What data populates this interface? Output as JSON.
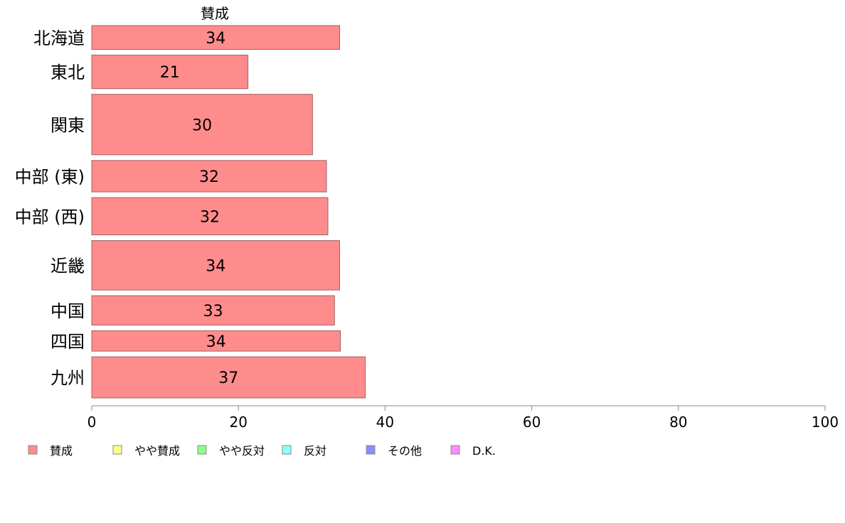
{
  "chart_data": {
    "type": "bar",
    "orientation": "horizontal",
    "series_title": "賛成",
    "categories": [
      "北海道",
      "東北",
      "関東",
      "中部 (東)",
      "中部 (西)",
      "近畿",
      "中国",
      "四国",
      "九州"
    ],
    "values": [
      33.8,
      21.3,
      30.1,
      32.0,
      32.2,
      33.8,
      33.1,
      33.9,
      37.3
    ],
    "value_labels": [
      "34",
      "21",
      "30",
      "32",
      "32",
      "34",
      "33",
      "34",
      "37"
    ],
    "relative_weights": [
      0.69,
      0.97,
      1.75,
      0.91,
      1.08,
      1.43,
      0.85,
      0.59,
      1.19
    ],
    "xlim": [
      0,
      100
    ],
    "x_ticks": [
      "0",
      "20",
      "40",
      "60",
      "80",
      "100"
    ],
    "grid": false,
    "bar_color": "#ff8c8c",
    "bar_stroke": "#a06060",
    "legend_position": "bottom",
    "legend": [
      {
        "label": "賛成",
        "color": "#ff8c8c"
      },
      {
        "label": "やや賛成",
        "color": "#ffff8c"
      },
      {
        "label": "やや反対",
        "color": "#8cff8c"
      },
      {
        "label": "反対",
        "color": "#8cffff"
      },
      {
        "label": "その他",
        "color": "#8c8cff"
      },
      {
        "label": "D.K.",
        "color": "#ff8cff"
      }
    ]
  }
}
